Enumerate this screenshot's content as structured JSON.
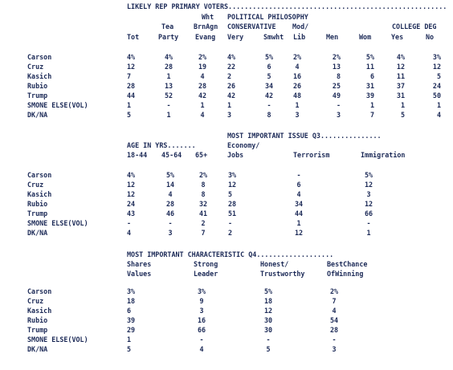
{
  "section1": {
    "headers": {
      "banner": "LIKELY REP PRIMARY VOTERS......................................................",
      "wht": "Wht",
      "political_philosophy": "POLITICAL PHILOSOPHY",
      "college_deg": "COLLEGE DEG",
      "tea": "Tea",
      "brnagn": "BrnAgn",
      "conservative": "CONSERVATIVE",
      "mod": "Mod/",
      "tot": "Tot",
      "party": "Party",
      "evang": "Evang",
      "very": "Very",
      "smwht": "Smwht",
      "lib": "Lib",
      "men": "Men",
      "wom": "Wom",
      "yes": "Yes",
      "no": "No"
    },
    "rows": [
      {
        "label": "Carson",
        "values": [
          "4%",
          "4%",
          "2%",
          "4%",
          "5%",
          "2%",
          "2%",
          "5%",
          "4%",
          "3%"
        ]
      },
      {
        "label": "Cruz",
        "values": [
          "12",
          "28",
          "19",
          "22",
          "6",
          "4",
          "13",
          "11",
          "12",
          "12"
        ]
      },
      {
        "label": "Kasich",
        "values": [
          "7",
          "1",
          "4",
          "2",
          "5",
          "16",
          "8",
          "6",
          "11",
          "5"
        ]
      },
      {
        "label": "Rubio",
        "values": [
          "28",
          "13",
          "28",
          "26",
          "34",
          "26",
          "25",
          "31",
          "37",
          "24"
        ]
      },
      {
        "label": "Trump",
        "values": [
          "44",
          "52",
          "42",
          "42",
          "42",
          "48",
          "49",
          "39",
          "31",
          "50"
        ]
      },
      {
        "label": "SMONE ELSE(VOL)",
        "values": [
          "1",
          "-",
          "1",
          "1",
          "-",
          "1",
          "-",
          "1",
          "1",
          "1"
        ]
      },
      {
        "label": "DK/NA",
        "values": [
          "5",
          "1",
          "4",
          "3",
          "8",
          "3",
          "3",
          "7",
          "5",
          "4"
        ]
      }
    ]
  },
  "section2": {
    "headers": {
      "age_banner": "AGE IN YRS.......",
      "issue_banner": "MOST IMPORTANT ISSUE Q3...............",
      "economy": "Economy/",
      "age1": "18-44",
      "age2": "45-64",
      "age3": "65+",
      "jobs": "Jobs",
      "terrorism": "Terrorism",
      "immigration": "Immigration"
    },
    "rows": [
      {
        "label": "Carson",
        "values": [
          "4%",
          "5%",
          "2%",
          "3%",
          "-",
          "5%"
        ]
      },
      {
        "label": "Cruz",
        "values": [
          "12",
          "14",
          "8",
          "12",
          "6",
          "12"
        ]
      },
      {
        "label": "Kasich",
        "values": [
          "12",
          "4",
          "8",
          "5",
          "4",
          "3"
        ]
      },
      {
        "label": "Rubio",
        "values": [
          "24",
          "28",
          "32",
          "28",
          "34",
          "12"
        ]
      },
      {
        "label": "Trump",
        "values": [
          "43",
          "46",
          "41",
          "51",
          "44",
          "66"
        ]
      },
      {
        "label": "SMONE ELSE(VOL)",
        "values": [
          "-",
          "-",
          "2",
          "-",
          "1",
          "-"
        ]
      },
      {
        "label": "DK/NA",
        "values": [
          "4",
          "3",
          "7",
          "2",
          "12",
          "1"
        ]
      }
    ]
  },
  "section3": {
    "headers": {
      "banner": "MOST IMPORTANT CHARACTERISTIC Q4...................",
      "shares": "Shares",
      "strong": "Strong",
      "honest": "Honest/",
      "bestchance": "BestChance",
      "values": "Values",
      "leader": "Leader",
      "trustworthy": "Trustworthy",
      "ofwinning": "OfWinning"
    },
    "rows": [
      {
        "label": "Carson",
        "values": [
          "3%",
          "3%",
          "5%",
          "2%"
        ]
      },
      {
        "label": "Cruz",
        "values": [
          "18",
          "9",
          "18",
          "7"
        ]
      },
      {
        "label": "Kasich",
        "values": [
          "6",
          "3",
          "12",
          "4"
        ]
      },
      {
        "label": "Rubio",
        "values": [
          "39",
          "16",
          "30",
          "54"
        ]
      },
      {
        "label": "Trump",
        "values": [
          "29",
          "66",
          "30",
          "28"
        ]
      },
      {
        "label": "SMONE ELSE(VOL)",
        "values": [
          "1",
          "-",
          "-",
          "-"
        ]
      },
      {
        "label": "DK/NA",
        "values": [
          "5",
          "4",
          "5",
          "3"
        ]
      }
    ]
  }
}
